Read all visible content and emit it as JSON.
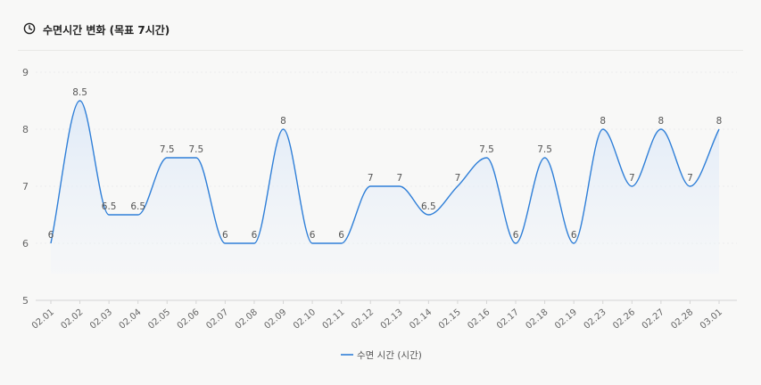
{
  "header": {
    "title": "수면시간 변화 (목표 7시간)",
    "icon": "clock-icon"
  },
  "chart_data": {
    "type": "area",
    "categories": [
      "02.01",
      "02.02",
      "02.03",
      "02.04",
      "02.05",
      "02.06",
      "02.07",
      "02.08",
      "02.09",
      "02.10",
      "02.11",
      "02.12",
      "02.13",
      "02.14",
      "02.15",
      "02.16",
      "02.17",
      "02.18",
      "02.19",
      "02.23",
      "02.26",
      "02.27",
      "02.28",
      "03.01"
    ],
    "series": [
      {
        "name": "수면 시간 (시간)",
        "values": [
          6,
          8.5,
          6.5,
          6.5,
          7.5,
          7.5,
          6,
          6,
          8,
          6,
          6,
          7,
          7,
          6.5,
          7,
          7.5,
          6,
          7.5,
          6,
          8,
          7,
          8,
          7,
          8
        ]
      }
    ],
    "ylim": [
      5,
      9
    ],
    "yticks": [
      5,
      6,
      7,
      8,
      9
    ],
    "grid": true,
    "legend": "bottom",
    "colors": {
      "line": "#2f7fd8",
      "fill_top": "#dce8f7",
      "grid": "#ececec",
      "axis_text": "#666666",
      "label_text": "#555555"
    }
  }
}
